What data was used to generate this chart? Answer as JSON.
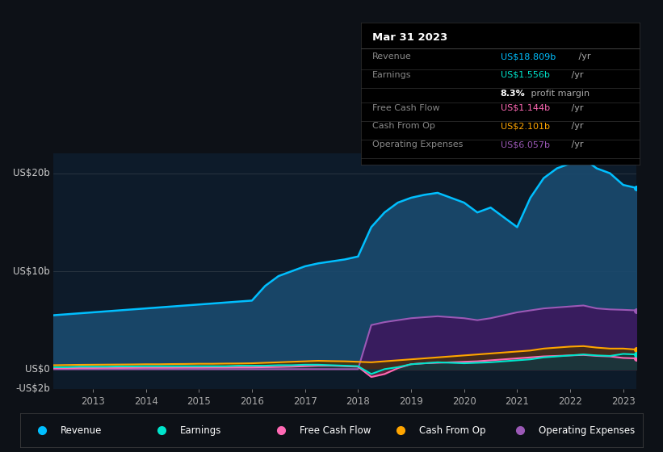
{
  "bg_color": "#0d1117",
  "plot_bg_color": "#0d1b2a",
  "title": "Mar 31 2023",
  "tooltip": {
    "Revenue": {
      "value": "US$18.809b /yr",
      "color": "#00bfff"
    },
    "Earnings": {
      "value": "US$1.556b /yr",
      "color": "#00e5cc"
    },
    "profit_margin": "8.3% profit margin",
    "Free Cash Flow": {
      "value": "US$1.144b /yr",
      "color": "#ff69b4"
    },
    "Cash From Op": {
      "value": "US$2.101b /yr",
      "color": "#ffa500"
    },
    "Operating Expenses": {
      "value": "US$6.057b /yr",
      "color": "#9b59b6"
    }
  },
  "years": [
    2012.25,
    2012.5,
    2012.75,
    2013.0,
    2013.25,
    2013.5,
    2013.75,
    2014.0,
    2014.25,
    2014.5,
    2014.75,
    2015.0,
    2015.25,
    2015.5,
    2015.75,
    2016.0,
    2016.25,
    2016.5,
    2016.75,
    2017.0,
    2017.25,
    2017.5,
    2017.75,
    2018.0,
    2018.25,
    2018.5,
    2018.75,
    2019.0,
    2019.25,
    2019.5,
    2019.75,
    2020.0,
    2020.25,
    2020.5,
    2020.75,
    2021.0,
    2021.25,
    2021.5,
    2021.75,
    2022.0,
    2022.25,
    2022.5,
    2022.75,
    2023.0,
    2023.25
  ],
  "revenue": [
    5.5,
    5.6,
    5.7,
    5.8,
    5.9,
    6.0,
    6.1,
    6.2,
    6.3,
    6.4,
    6.5,
    6.6,
    6.7,
    6.8,
    6.9,
    7.0,
    8.5,
    9.5,
    10.0,
    10.5,
    10.8,
    11.0,
    11.2,
    11.5,
    14.5,
    16.0,
    17.0,
    17.5,
    17.8,
    18.0,
    17.5,
    17.0,
    16.0,
    16.5,
    15.5,
    14.5,
    17.5,
    19.5,
    20.5,
    21.0,
    21.5,
    20.5,
    20.0,
    18.809,
    18.5
  ],
  "earnings": [
    0.2,
    0.2,
    0.25,
    0.25,
    0.25,
    0.28,
    0.28,
    0.3,
    0.3,
    0.3,
    0.3,
    0.3,
    0.3,
    0.3,
    0.35,
    0.35,
    0.35,
    0.4,
    0.4,
    0.45,
    0.45,
    0.4,
    0.35,
    0.3,
    -0.5,
    0.0,
    0.2,
    0.5,
    0.6,
    0.7,
    0.65,
    0.6,
    0.65,
    0.7,
    0.8,
    0.9,
    1.0,
    1.2,
    1.3,
    1.4,
    1.5,
    1.4,
    1.35,
    1.556,
    1.5
  ],
  "free_cash_flow": [
    0.1,
    0.1,
    0.12,
    0.12,
    0.13,
    0.13,
    0.14,
    0.15,
    0.15,
    0.15,
    0.16,
    0.16,
    0.17,
    0.17,
    0.18,
    0.18,
    0.2,
    0.22,
    0.25,
    0.3,
    0.35,
    0.35,
    0.3,
    0.25,
    -0.8,
    -0.5,
    0.1,
    0.5,
    0.6,
    0.65,
    0.7,
    0.75,
    0.8,
    0.9,
    1.0,
    1.1,
    1.2,
    1.3,
    1.35,
    1.4,
    1.45,
    1.35,
    1.3,
    1.144,
    1.1
  ],
  "cash_from_op": [
    0.4,
    0.42,
    0.44,
    0.45,
    0.46,
    0.47,
    0.48,
    0.5,
    0.5,
    0.52,
    0.53,
    0.55,
    0.55,
    0.57,
    0.58,
    0.6,
    0.65,
    0.7,
    0.75,
    0.8,
    0.85,
    0.82,
    0.8,
    0.75,
    0.7,
    0.8,
    0.9,
    1.0,
    1.1,
    1.2,
    1.3,
    1.4,
    1.5,
    1.6,
    1.7,
    1.8,
    1.9,
    2.1,
    2.2,
    2.3,
    2.35,
    2.2,
    2.1,
    2.101,
    2.0
  ],
  "op_expenses": [
    0.0,
    0.0,
    0.0,
    0.0,
    0.0,
    0.0,
    0.0,
    0.0,
    0.0,
    0.0,
    0.0,
    0.0,
    0.0,
    0.0,
    0.0,
    0.0,
    0.0,
    0.0,
    0.0,
    0.0,
    0.0,
    0.0,
    0.0,
    0.0,
    4.5,
    4.8,
    5.0,
    5.2,
    5.3,
    5.4,
    5.3,
    5.2,
    5.0,
    5.2,
    5.5,
    5.8,
    6.0,
    6.2,
    6.3,
    6.4,
    6.5,
    6.2,
    6.1,
    6.057,
    6.0
  ],
  "ylim": [
    -2,
    22
  ],
  "xtick_years": [
    2013,
    2014,
    2015,
    2016,
    2017,
    2018,
    2019,
    2020,
    2021,
    2022,
    2023
  ],
  "ytick_positions": [
    -2,
    0,
    10,
    20
  ],
  "ytick_labels": [
    "-US$2b",
    "US$0",
    "US$10b",
    "US$20b"
  ],
  "legend_items": [
    {
      "label": "Revenue",
      "color": "#00bfff"
    },
    {
      "label": "Earnings",
      "color": "#00e5cc"
    },
    {
      "label": "Free Cash Flow",
      "color": "#ff69b4"
    },
    {
      "label": "Cash From Op",
      "color": "#ffa500"
    },
    {
      "label": "Operating Expenses",
      "color": "#9b59b6"
    }
  ],
  "colors": {
    "revenue_line": "#00bfff",
    "revenue_fill": "#1a4a6e",
    "earnings_line": "#00e5cc",
    "earnings_fill": "#0a3a3a",
    "free_cash_flow_line": "#ff69b4",
    "free_cash_flow_fill": "#6e2040",
    "cash_from_op_line": "#ffa500",
    "cash_from_op_fill": "#4a3000",
    "op_expenses_line": "#9b59b6",
    "op_expenses_fill": "#3a1a5e"
  }
}
